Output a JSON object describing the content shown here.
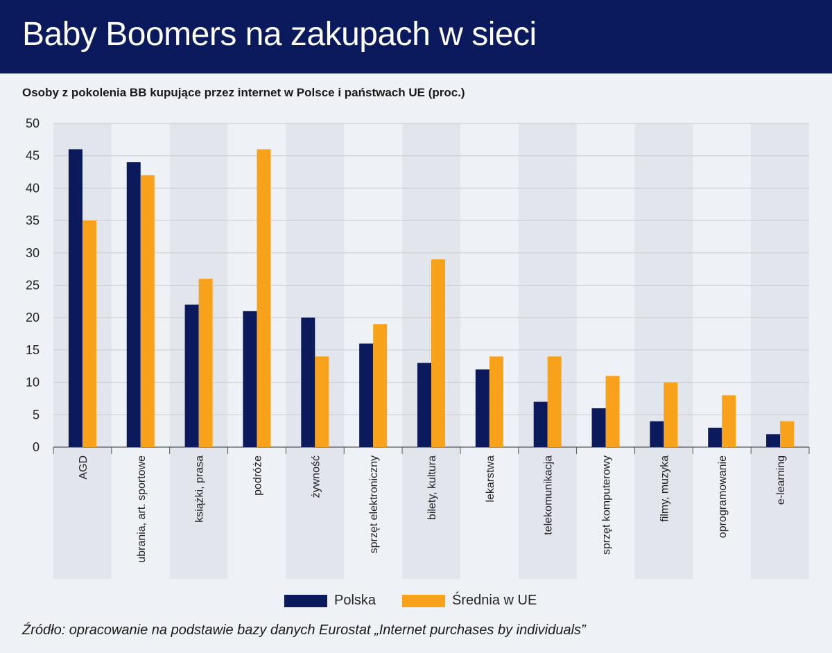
{
  "header": {
    "title": "Baby Boomers na zakupach w sieci"
  },
  "subtitle": "Osoby z pokolenia BB kupujące przez internet w Polsce i państwach UE (proc.)",
  "source": "Źródło: opracowanie na podstawie bazy danych Eurostat „Internet purchases by individuals”",
  "colors": {
    "polska": "#0a1a5c",
    "ue": "#f7a21a",
    "band": "#e2e6ec",
    "grid": "#c9ccd1",
    "header": "#0a1a5c"
  },
  "chart_data": {
    "type": "bar",
    "title": "",
    "xlabel": "",
    "ylabel": "",
    "ylim": [
      0,
      50
    ],
    "yticks": [
      0,
      5,
      10,
      15,
      20,
      25,
      30,
      35,
      40,
      45,
      50
    ],
    "grid": true,
    "legend_position": "bottom",
    "categories": [
      "AGD",
      "ubrania, art. sportowe",
      "książki, prasa",
      "podróże",
      "żywność",
      "sprzęt elektroniczny",
      "bilety, kultura",
      "lekarstwa",
      "telekomunikacja",
      "sprzęt komputerowy",
      "filmy, muzyka",
      "oprogramowanie",
      "e-learning"
    ],
    "series": [
      {
        "name": "Polska",
        "values": [
          46,
          44,
          22,
          21,
          20,
          16,
          13,
          12,
          7,
          6,
          4,
          3,
          2
        ]
      },
      {
        "name": "Średnia w UE",
        "values": [
          35,
          42,
          26,
          46,
          14,
          19,
          29,
          14,
          14,
          11,
          10,
          8,
          4
        ]
      }
    ]
  }
}
